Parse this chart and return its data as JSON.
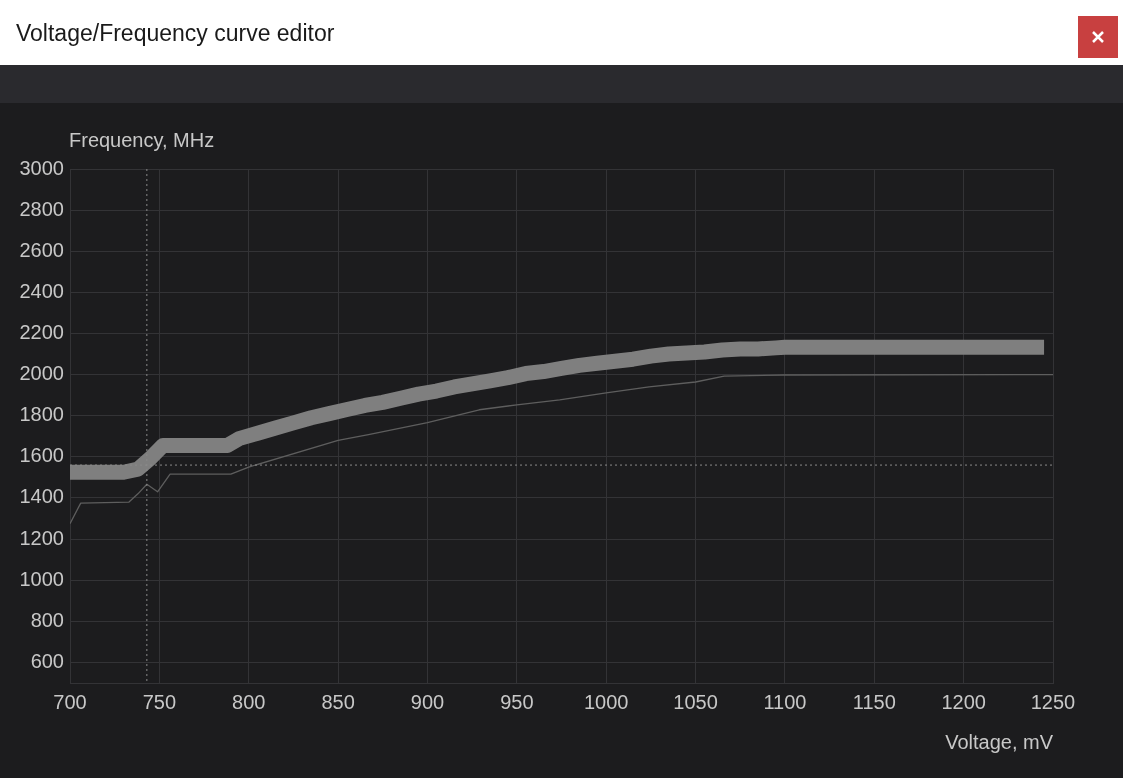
{
  "chart_data": {
    "type": "line",
    "title": "Voltage/Frequency curve editor",
    "xlabel": "Voltage, mV",
    "ylabel": "Frequency, MHz",
    "xlim": [
      700,
      1250
    ],
    "xticks": [
      700,
      750,
      800,
      850,
      900,
      950,
      1000,
      1050,
      1100,
      1150,
      1200,
      1250
    ],
    "ylim": [
      500,
      3000
    ],
    "yticks": [
      {
        "value": 500,
        "label": null
      },
      600,
      800,
      1000,
      1200,
      1400,
      1600,
      1800,
      2000,
      2200,
      2400,
      2600,
      2800,
      3000
    ],
    "grid": true,
    "legend": false,
    "marker": "none",
    "ref_lines": [
      {
        "axis": "x",
        "value": 743,
        "line_style": "dotted",
        "color": "#8a8a8a"
      },
      {
        "axis": "y",
        "value": 1560,
        "line_style": "dotted",
        "color": "#8a8a8a"
      }
    ],
    "series": [
      {
        "color": "#7f7f7f",
        "x": [
          700,
          730,
          738,
          745,
          752,
          788,
          795,
          805,
          815,
          825,
          835,
          845,
          855,
          865,
          875,
          885,
          895,
          905,
          915,
          925,
          935,
          945,
          955,
          965,
          975,
          985,
          995,
          1005,
          1015,
          1025,
          1035,
          1045,
          1055,
          1065,
          1075,
          1085,
          1095,
          1100,
          1245
        ],
        "values": [
          1525,
          1525,
          1540,
          1593,
          1655,
          1655,
          1690,
          1715,
          1740,
          1765,
          1790,
          1810,
          1830,
          1850,
          1865,
          1885,
          1905,
          1920,
          1940,
          1955,
          1970,
          1985,
          2005,
          2015,
          2030,
          2045,
          2055,
          2065,
          2075,
          2090,
          2100,
          2105,
          2110,
          2120,
          2125,
          2125,
          2130,
          2133,
          2133
        ]
      },
      {
        "color": "#5e5e5e",
        "x": [
          700,
          706,
          733,
          738,
          743,
          749,
          756,
          790,
          800,
          850,
          867,
          900,
          929,
          950,
          974,
          1000,
          1024,
          1050,
          1066,
          1100,
          1250
        ],
        "values": [
          1275,
          1375,
          1380,
          1420,
          1467,
          1430,
          1516,
          1516,
          1550,
          1680,
          1708,
          1766,
          1829,
          1853,
          1877,
          1911,
          1940,
          1964,
          1993,
          1998,
          2000
        ]
      }
    ]
  }
}
